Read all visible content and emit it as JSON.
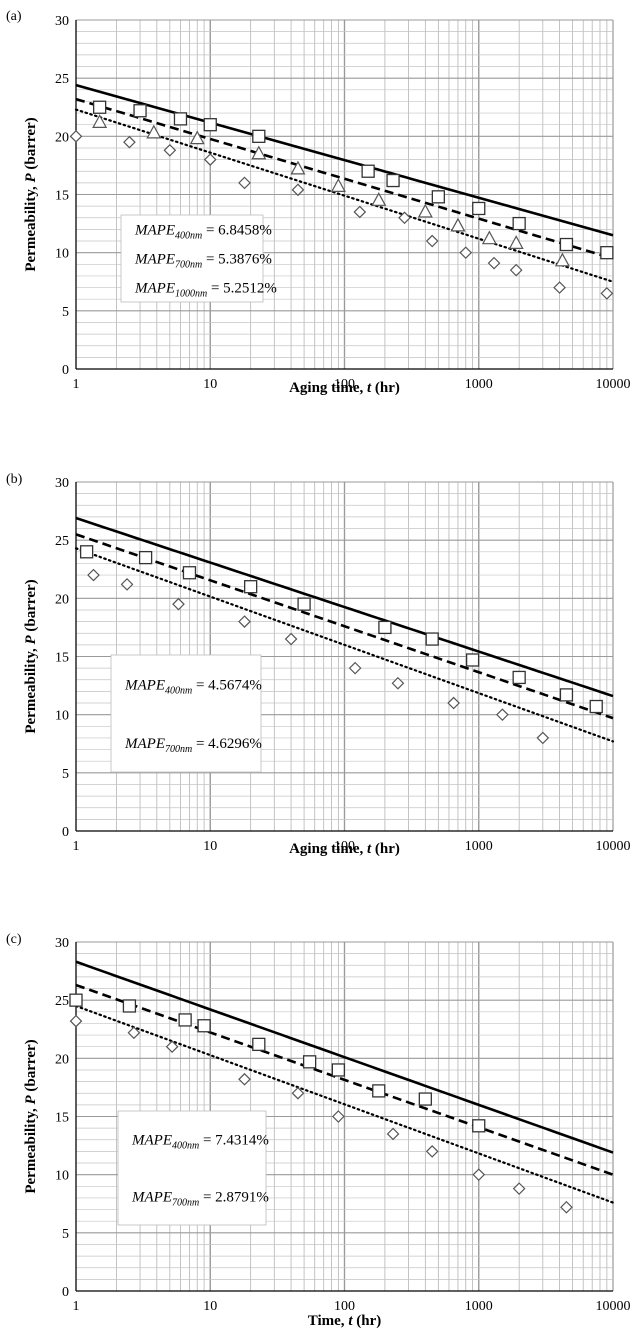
{
  "chart_data": [
    {
      "type": "scatter",
      "panel": "(a)",
      "xlabel": "Aging time,",
      "xlabel_var": "t",
      "xlabel_unit": "(hr)",
      "ylabel": "Permeability,",
      "ylabel_var": "P",
      "ylabel_unit": "(barrer)",
      "xscale": "log",
      "xlim": [
        1,
        10000
      ],
      "ylim": [
        0,
        30
      ],
      "xticks": [
        "1",
        "10",
        "100",
        "1000",
        "10000"
      ],
      "yticks": [
        "0",
        "5",
        "10",
        "15",
        "20",
        "25",
        "30"
      ],
      "grid": true,
      "annotations": [
        {
          "main": "MAPE",
          "sub": "400nm",
          "value": "= 6.8458%"
        },
        {
          "main": "MAPE",
          "sub": "700nm",
          "value": "= 5.3876%"
        },
        {
          "main": "MAPE",
          "sub": "1000nm",
          "value": "= 5.2512%"
        }
      ],
      "series": [
        {
          "marker": "square",
          "x": [
            1.5,
            3,
            6,
            10,
            23,
            150,
            230,
            500,
            1000,
            2000,
            4500,
            9000
          ],
          "y": [
            22.5,
            22.2,
            21.5,
            21,
            20,
            17,
            16.2,
            14.8,
            13.8,
            12.5,
            10.7,
            10
          ]
        },
        {
          "marker": "triangle",
          "x": [
            1.5,
            3.8,
            8,
            23,
            45,
            90,
            180,
            400,
            700,
            1200,
            1900,
            4200
          ],
          "y": [
            21.2,
            20.3,
            19.8,
            18.5,
            17.2,
            15.7,
            14.5,
            13.5,
            12.3,
            11.2,
            10.8,
            9.3
          ]
        },
        {
          "marker": "diamond",
          "x": [
            1,
            2.5,
            5,
            10,
            18,
            45,
            130,
            280,
            450,
            800,
            1300,
            1900,
            4000,
            9000
          ],
          "y": [
            20,
            19.5,
            18.8,
            18,
            16,
            15.4,
            13.5,
            13,
            11,
            10,
            9.1,
            8.5,
            7,
            6.5
          ]
        }
      ],
      "fits": [
        {
          "style": "solid",
          "x": [
            1,
            10000
          ],
          "y": [
            24.4,
            11.5
          ]
        },
        {
          "style": "dashed",
          "x": [
            1,
            10000
          ],
          "y": [
            23.2,
            9.5
          ]
        },
        {
          "style": "dotted",
          "x": [
            1,
            10000
          ],
          "y": [
            22.3,
            7.5
          ]
        }
      ]
    },
    {
      "type": "scatter",
      "panel": "(b)",
      "xlabel": "Aging time,",
      "xlabel_var": "t",
      "xlabel_unit": "(hr)",
      "ylabel": "Permeability,",
      "ylabel_var": "P",
      "ylabel_unit": "(barrer)",
      "xscale": "log",
      "xlim": [
        1,
        10000
      ],
      "ylim": [
        0,
        30
      ],
      "xticks": [
        "1",
        "10",
        "100",
        "1000",
        "10000"
      ],
      "yticks": [
        "0",
        "5",
        "10",
        "15",
        "20",
        "25",
        "30"
      ],
      "grid": true,
      "annotations": [
        {
          "main": "MAPE",
          "sub": "400nm",
          "value": "= 4.5674%"
        },
        {
          "main": "MAPE",
          "sub": "700nm",
          "value": "= 4.6296%"
        }
      ],
      "series": [
        {
          "marker": "square",
          "x": [
            1.2,
            3.3,
            7,
            20,
            50,
            200,
            450,
            900,
            2000,
            4500,
            7500
          ],
          "y": [
            24,
            23.5,
            22.2,
            21,
            19.5,
            17.5,
            16.5,
            14.7,
            13.2,
            11.7,
            10.7
          ]
        },
        {
          "marker": "diamond",
          "x": [
            1.35,
            2.4,
            5.8,
            18,
            40,
            120,
            250,
            650,
            1500,
            3000
          ],
          "y": [
            22,
            21.2,
            19.5,
            18,
            16.5,
            14,
            12.7,
            11,
            10,
            8
          ]
        }
      ],
      "fits": [
        {
          "style": "solid",
          "x": [
            1,
            10000
          ],
          "y": [
            26.9,
            11.6
          ]
        },
        {
          "style": "dashed",
          "x": [
            1,
            10000
          ],
          "y": [
            25.5,
            9.7
          ]
        },
        {
          "style": "dotted",
          "x": [
            1,
            10000
          ],
          "y": [
            24.3,
            7.7
          ]
        }
      ]
    },
    {
      "type": "scatter",
      "panel": "(c)",
      "xlabel": "Time,",
      "xlabel_var": "t",
      "xlabel_unit": "(hr)",
      "ylabel": "Permeability,",
      "ylabel_var": "P",
      "ylabel_unit": "(barrer)",
      "xscale": "log",
      "xlim": [
        1,
        10000
      ],
      "ylim": [
        0,
        30
      ],
      "xticks": [
        "1",
        "10",
        "100",
        "1000",
        "10000"
      ],
      "yticks": [
        "0",
        "5",
        "10",
        "15",
        "20",
        "25",
        "30"
      ],
      "grid": true,
      "annotations": [
        {
          "main": "MAPE",
          "sub": "400nm",
          "value": "= 7.4314%"
        },
        {
          "main": "MAPE",
          "sub": "700nm",
          "value": "= 2.8791%"
        }
      ],
      "series": [
        {
          "marker": "square",
          "x": [
            1,
            2.5,
            6.5,
            9,
            23,
            55,
            90,
            180,
            400,
            1000
          ],
          "y": [
            25,
            24.5,
            23.3,
            22.8,
            21.2,
            19.7,
            19,
            17.2,
            16.5,
            14.2
          ]
        },
        {
          "marker": "diamond",
          "x": [
            1,
            2.7,
            5.2,
            18,
            45,
            90,
            230,
            450,
            1000,
            2000,
            4500
          ],
          "y": [
            23.2,
            22.2,
            21,
            18.2,
            17,
            15,
            13.5,
            12,
            10,
            8.8,
            7.2
          ]
        }
      ],
      "fits": [
        {
          "style": "solid",
          "x": [
            1,
            10000
          ],
          "y": [
            28.3,
            11.9
          ]
        },
        {
          "style": "dashed",
          "x": [
            1,
            10000
          ],
          "y": [
            26.3,
            10
          ]
        },
        {
          "style": "dotted",
          "x": [
            1,
            10000
          ],
          "y": [
            24.5,
            7.6
          ]
        }
      ]
    }
  ]
}
